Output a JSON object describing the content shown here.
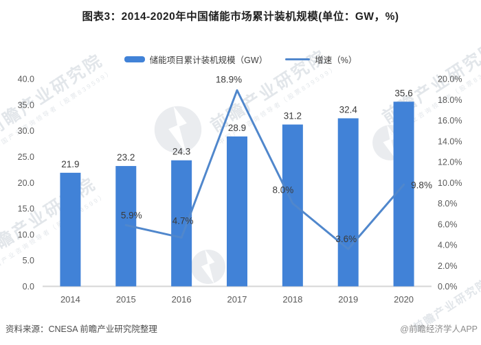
{
  "title": "图表3：2014-2020年中国储能市场累计装机规模(单位：GW，%)",
  "legend": [
    {
      "label": "储能项目累计装机规模（GW）",
      "type": "bar"
    },
    {
      "label": "增速（%）",
      "type": "line"
    }
  ],
  "colors": {
    "bar": "#4182D7",
    "line": "#5087CC",
    "axis_line": "#D6D6D6"
  },
  "chart_data": {
    "type": "bar+line",
    "title": "图表3：2014-2020年中国储能市场累计装机规模(单位：GW，%)",
    "categories": [
      "2014",
      "2015",
      "2016",
      "2017",
      "2018",
      "2019",
      "2020"
    ],
    "series": [
      {
        "name": "储能项目累计装机规模（GW）",
        "type": "bar",
        "axis": "left",
        "values": [
          21.9,
          23.2,
          24.3,
          28.9,
          31.2,
          32.4,
          35.6
        ],
        "labels": [
          "21.9",
          "23.2",
          "24.3",
          "28.9",
          "31.2",
          "32.4",
          "35.6"
        ],
        "color": "#4182D7"
      },
      {
        "name": "增速（%）",
        "type": "line",
        "axis": "right",
        "values": [
          null,
          5.9,
          4.7,
          18.9,
          8.0,
          3.6,
          9.8
        ],
        "labels": [
          null,
          "5.9%",
          "4.7%",
          "18.9%",
          "8.0%",
          "3.6%",
          "9.8%"
        ],
        "label_dx": [
          0,
          8,
          2,
          -12,
          -14,
          -3,
          26
        ],
        "label_dy": [
          0,
          -10,
          -20,
          -11,
          -15,
          -10,
          5
        ],
        "color": "#5087CC"
      }
    ],
    "left_axis": {
      "min": 0,
      "max": 40,
      "step": 5,
      "tick_labels": [
        "0.0",
        "5.0",
        "10.0",
        "15.0",
        "20.0",
        "25.0",
        "30.0",
        "35.0",
        "40.0"
      ]
    },
    "right_axis": {
      "min": 0,
      "max": 20,
      "step": 2,
      "tick_labels": [
        "0.0%",
        "2.0%",
        "4.0%",
        "6.0%",
        "8.0%",
        "10.0%",
        "12.0%",
        "14.0%",
        "16.0%",
        "18.0%",
        "20.0%"
      ]
    },
    "grid": false,
    "legend_position": "top"
  },
  "footer": {
    "source": "资料来源：CNESA 前瞻产业研究院整理",
    "credit": "@前瞻经济学人APP"
  },
  "watermark": {
    "brand": "前瞻产业研究院",
    "sub": "中国产业咨询领导者（股票839599）"
  }
}
